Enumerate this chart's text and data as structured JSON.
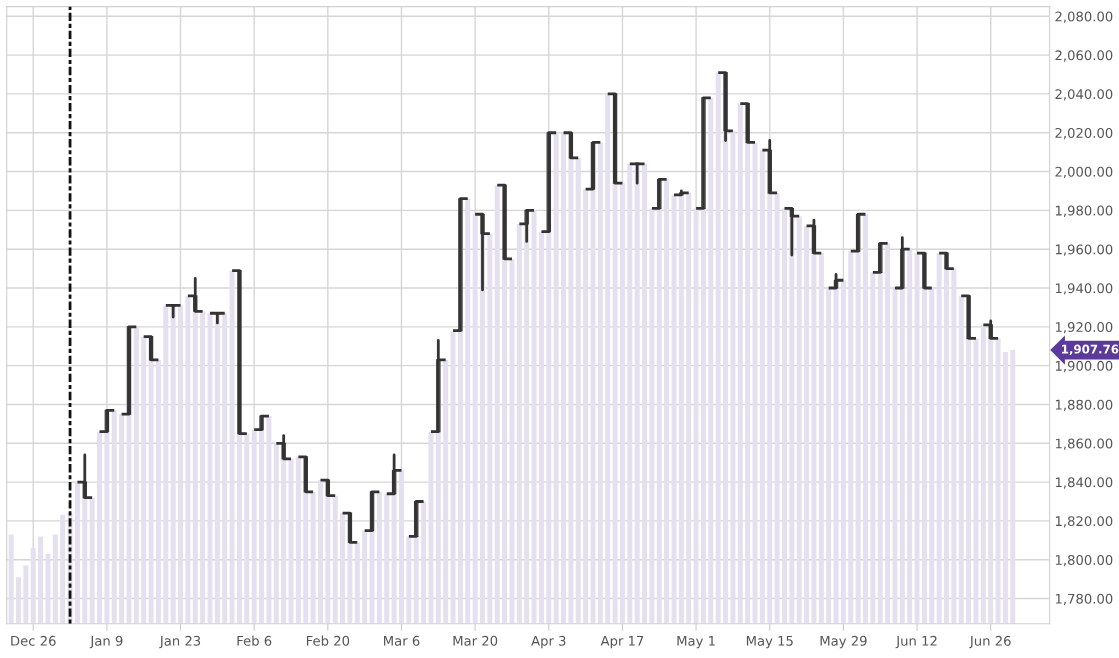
{
  "chart_data": {
    "type": "bar",
    "categories": [
      null,
      null,
      null,
      "Dec 26",
      null,
      null,
      null,
      null,
      null,
      null,
      null,
      null,
      null,
      "Jan 9",
      null,
      null,
      null,
      null,
      null,
      null,
      null,
      null,
      null,
      "Jan 23",
      null,
      null,
      null,
      null,
      null,
      null,
      null,
      null,
      null,
      "Feb 6",
      null,
      null,
      null,
      null,
      null,
      null,
      null,
      null,
      null,
      "Feb 20",
      null,
      null,
      null,
      null,
      null,
      null,
      null,
      null,
      null,
      "Mar 6",
      null,
      null,
      null,
      null,
      null,
      null,
      null,
      null,
      null,
      "Mar 20",
      null,
      null,
      null,
      null,
      null,
      null,
      null,
      null,
      null,
      "Apr 3",
      null,
      null,
      null,
      null,
      null,
      null,
      null,
      null,
      null,
      "Apr 17",
      null,
      null,
      null,
      null,
      null,
      null,
      null,
      null,
      null,
      "May 1",
      null,
      null,
      null,
      null,
      null,
      null,
      null,
      null,
      null,
      "May 15",
      null,
      null,
      null,
      null,
      null,
      null,
      null,
      null,
      null,
      "May 29",
      null,
      null,
      null,
      null,
      null,
      null,
      null,
      null,
      null,
      "Jun 12",
      null,
      null,
      null,
      null,
      null,
      null,
      null,
      null,
      null,
      "Jun 26",
      null,
      null,
      null
    ],
    "series": [
      {
        "color": "#e4e0f0",
        "values": [
          1813,
          1791,
          1797,
          1806,
          1812,
          1803,
          1813,
          1823,
          1824,
          1840,
          1832,
          1832,
          1866,
          1877,
          1877,
          1875,
          1920,
          1920,
          1915,
          1903,
          1903,
          1931,
          1931,
          1931,
          1936,
          1928,
          1928,
          1927,
          1927,
          1927,
          1949,
          1865,
          1865,
          1867,
          1874,
          1874,
          1860,
          1852,
          1852,
          1853,
          1835,
          1835,
          1841,
          1833,
          1833,
          1824,
          1809,
          1809,
          1815,
          1835,
          1835,
          1834,
          1846,
          1846,
          1812,
          1830,
          1830,
          1866,
          1903,
          1903,
          1918,
          1986,
          1986,
          1978,
          1968,
          1968,
          1993,
          1955,
          1955,
          1973,
          1980,
          1980,
          1969,
          2020,
          2020,
          2020,
          2007,
          2007,
          1991,
          2015,
          2015,
          2040,
          1994,
          1994,
          2004,
          2004,
          2004,
          1981,
          1996,
          1996,
          1988,
          1989,
          1989,
          1981,
          2038,
          2038,
          2051,
          2021,
          2021,
          2035,
          2015,
          2015,
          2011,
          1989,
          1989,
          1981,
          1977,
          1977,
          1972,
          1958,
          1958,
          1940,
          1944,
          1944,
          1959,
          1978,
          1978,
          1948,
          1963,
          1963,
          1940,
          1960,
          1960,
          1958,
          1940,
          1940,
          1958,
          1950,
          1950,
          1936,
          1914,
          1914,
          1921,
          1914,
          1914,
          1907,
          1908
        ]
      },
      {
        "type": "candlestick",
        "color": "#333333",
        "ohlc": [
          null,
          null,
          null,
          null,
          null,
          null,
          null,
          null,
          null,
          null,
          [
            1840,
            1854,
            1832,
            1832
          ],
          null,
          null,
          [
            1866,
            1877,
            1866,
            1877
          ],
          null,
          null,
          [
            1875,
            1920,
            1875,
            1920
          ],
          null,
          null,
          [
            1915,
            1915,
            1903,
            1903
          ],
          null,
          null,
          [
            1931,
            1931,
            1925,
            1931
          ],
          null,
          null,
          [
            1936,
            1945,
            1928,
            1928
          ],
          null,
          null,
          [
            1927,
            1927,
            1922,
            1927
          ],
          null,
          null,
          [
            1949,
            1949,
            1865,
            1865
          ],
          null,
          null,
          [
            1867,
            1874,
            1867,
            1874
          ],
          null,
          null,
          [
            1860,
            1864,
            1852,
            1852
          ],
          null,
          null,
          [
            1853,
            1853,
            1835,
            1835
          ],
          null,
          null,
          [
            1841,
            1841,
            1833,
            1833
          ],
          null,
          null,
          [
            1824,
            1824,
            1809,
            1809
          ],
          null,
          null,
          [
            1815,
            1835,
            1815,
            1835
          ],
          null,
          null,
          [
            1834,
            1854,
            1834,
            1846
          ],
          null,
          null,
          [
            1812,
            1830,
            1812,
            1830
          ],
          null,
          null,
          [
            1866,
            1913,
            1866,
            1903
          ],
          null,
          null,
          [
            1918,
            1986,
            1918,
            1986
          ],
          null,
          null,
          [
            1978,
            1978,
            1939,
            1968
          ],
          null,
          null,
          [
            1993,
            1993,
            1955,
            1955
          ],
          null,
          null,
          [
            1973,
            1980,
            1964,
            1980
          ],
          null,
          null,
          [
            1969,
            2020,
            1969,
            2020
          ],
          null,
          null,
          [
            2020,
            2020,
            2007,
            2007
          ],
          null,
          null,
          [
            1991,
            2015,
            1991,
            2015
          ],
          null,
          null,
          [
            2040,
            2040,
            1994,
            1994
          ],
          null,
          null,
          [
            2004,
            2004,
            1994,
            2004
          ],
          null,
          null,
          [
            1981,
            1996,
            1981,
            1996
          ],
          null,
          null,
          [
            1988,
            1990,
            1988,
            1989
          ],
          null,
          null,
          [
            1981,
            2038,
            1981,
            2038
          ],
          null,
          null,
          [
            2051,
            2051,
            2016,
            2021
          ],
          null,
          null,
          [
            2035,
            2035,
            2015,
            2015
          ],
          null,
          null,
          [
            2011,
            2016,
            1989,
            1989
          ],
          null,
          null,
          [
            1981,
            1981,
            1957,
            1977
          ],
          null,
          null,
          [
            1972,
            1975,
            1958,
            1958
          ],
          null,
          null,
          [
            1940,
            1947,
            1940,
            1944
          ],
          null,
          null,
          [
            1959,
            1978,
            1959,
            1978
          ],
          null,
          null,
          [
            1948,
            1963,
            1948,
            1963
          ],
          null,
          null,
          [
            1940,
            1966,
            1940,
            1960
          ],
          null,
          null,
          [
            1958,
            1958,
            1940,
            1940
          ],
          null,
          null,
          [
            1958,
            1958,
            1950,
            1950
          ],
          null,
          null,
          [
            1936,
            1936,
            1914,
            1914
          ],
          null,
          null,
          [
            1921,
            1923,
            1914,
            1914
          ],
          null,
          null,
          null
        ]
      }
    ],
    "ylim": [
      1767,
      2085
    ],
    "yticks": [
      {
        "value": 1780,
        "label": "1,780.00"
      },
      {
        "value": 1800,
        "label": "1,800.00"
      },
      {
        "value": 1820,
        "label": "1,820.00"
      },
      {
        "value": 1840,
        "label": "1,840.00"
      },
      {
        "value": 1860,
        "label": "1,860.00"
      },
      {
        "value": 1880,
        "label": "1,880.00"
      },
      {
        "value": 1900,
        "label": "1,900.00"
      },
      {
        "value": 1920,
        "label": "1,920.00"
      },
      {
        "value": 1940,
        "label": "1,940.00"
      },
      {
        "value": 1960,
        "label": "1,960.00"
      },
      {
        "value": 1980,
        "label": "1,980.00"
      },
      {
        "value": 2000,
        "label": "2,000.00"
      },
      {
        "value": 2020,
        "label": "2,020.00"
      },
      {
        "value": 2040,
        "label": "2,040.00"
      },
      {
        "value": 2060,
        "label": "2,060.00"
      },
      {
        "value": 2080,
        "label": "2,080.00"
      }
    ],
    "grid": true,
    "annotations": [
      "1,907.76"
    ]
  }
}
